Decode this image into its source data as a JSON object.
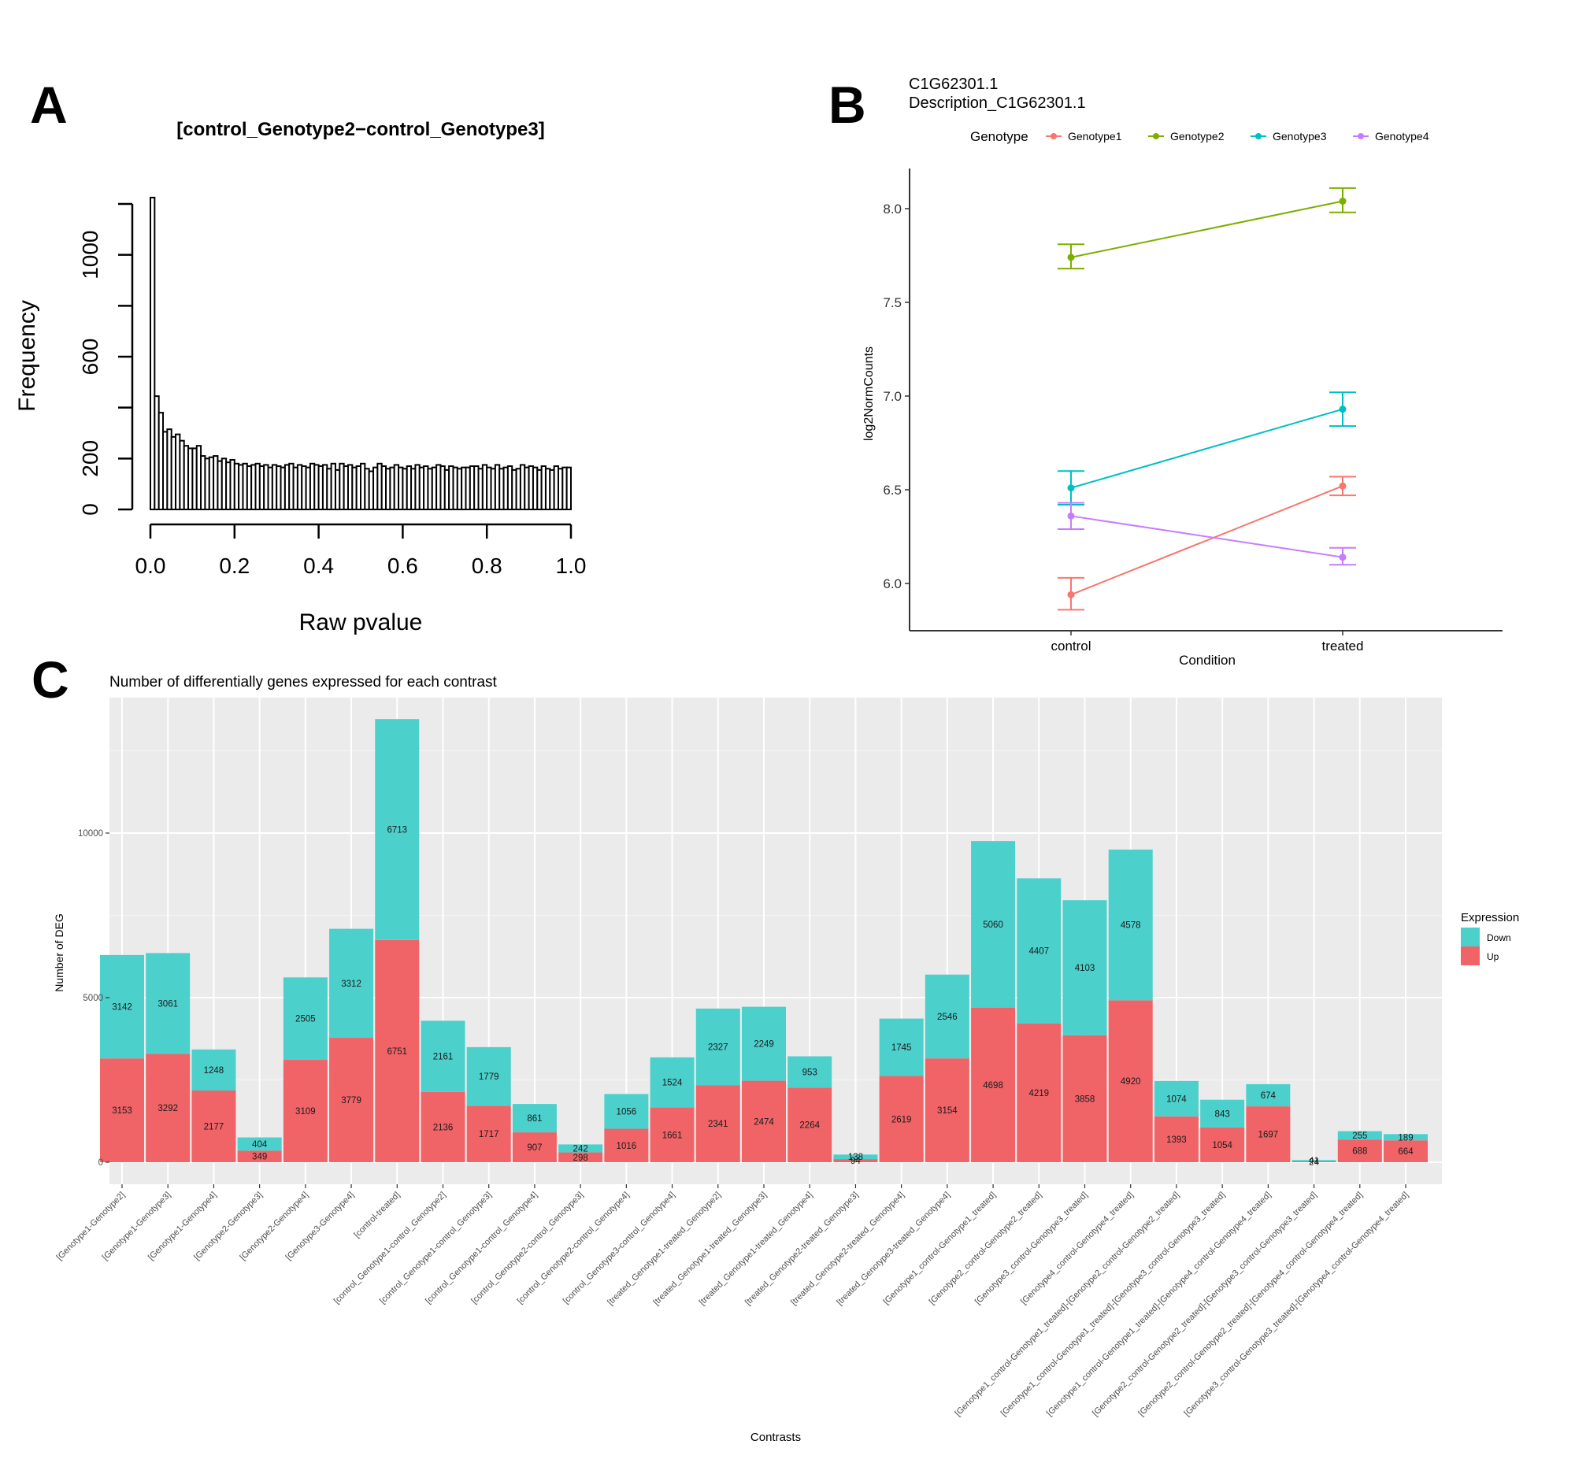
{
  "panels": {
    "A": "A",
    "B": "B",
    "C": "C"
  },
  "chart_data": [
    {
      "panel": "A",
      "type": "bar",
      "subtype": "histogram",
      "title": "[control_Genotype2−control_Genotype3]",
      "xlabel": "Raw pvalue",
      "ylabel": "Frequency",
      "xlim": [
        0,
        1
      ],
      "ylim": [
        0,
        1200
      ],
      "xticks": [
        "0.0",
        "0.2",
        "0.4",
        "0.6",
        "0.8",
        "1.0"
      ],
      "xtick_values": [
        0,
        0.2,
        0.4,
        0.6,
        0.8,
        1.0
      ],
      "yticks": [
        "0",
        "200",
        "600",
        "1000"
      ],
      "ytick_values": [
        0,
        200,
        400,
        600,
        800,
        1000,
        1200
      ],
      "ytick_labels_all": [
        "0",
        "200",
        "",
        "600",
        "",
        "1000",
        ""
      ],
      "bin_width": 0.01,
      "values": [
        1225,
        445,
        380,
        305,
        315,
        285,
        295,
        270,
        250,
        240,
        240,
        250,
        210,
        200,
        205,
        210,
        190,
        200,
        185,
        195,
        180,
        175,
        180,
        170,
        175,
        180,
        170,
        175,
        165,
        175,
        170,
        165,
        175,
        180,
        165,
        175,
        170,
        165,
        180,
        175,
        170,
        175,
        160,
        180,
        155,
        180,
        170,
        175,
        165,
        170,
        180,
        160,
        150,
        165,
        180,
        170,
        160,
        165,
        175,
        165,
        160,
        170,
        160,
        175,
        165,
        170,
        160,
        165,
        175,
        170,
        155,
        170,
        165,
        160,
        165,
        165,
        170,
        170,
        160,
        175,
        165,
        160,
        175,
        160,
        165,
        170,
        155,
        160,
        175,
        165,
        170,
        165,
        155,
        170,
        160,
        155,
        170,
        160,
        165,
        165
      ]
    },
    {
      "panel": "B",
      "type": "line",
      "title": "C1G62301.1",
      "subtitle": "Description_C1G62301.1",
      "xlabel": "Condition",
      "ylabel": "log2NormCounts",
      "categories": [
        "control",
        "treated"
      ],
      "ylim": [
        5.74,
        8.21
      ],
      "yticks": [
        "6.0",
        "6.5",
        "7.0",
        "7.5",
        "8.0"
      ],
      "ytick_values": [
        6.0,
        6.5,
        7.0,
        7.5,
        8.0
      ],
      "legend": {
        "title": "Genotype",
        "position": "top"
      },
      "series": [
        {
          "name": "Genotype1",
          "color": "#F8766D",
          "values": [
            5.94,
            6.52
          ],
          "lower": [
            5.86,
            6.47
          ],
          "upper": [
            6.03,
            6.57
          ]
        },
        {
          "name": "Genotype2",
          "color": "#7CAE00",
          "values": [
            7.74,
            8.04
          ],
          "lower": [
            7.68,
            7.98
          ],
          "upper": [
            7.81,
            8.11
          ]
        },
        {
          "name": "Genotype3",
          "color": "#00BFC4",
          "values": [
            6.51,
            6.93
          ],
          "lower": [
            6.42,
            6.84
          ],
          "upper": [
            6.6,
            7.02
          ]
        },
        {
          "name": "Genotype4",
          "color": "#C77CFF",
          "values": [
            6.36,
            6.14
          ],
          "lower": [
            6.29,
            6.1
          ],
          "upper": [
            6.43,
            6.19
          ]
        }
      ]
    },
    {
      "panel": "C",
      "type": "bar",
      "subtype": "stacked",
      "title": "Number of differentially genes expressed for each contrast",
      "xlabel": "Contrasts",
      "ylabel": "Number of DEG",
      "ylim": [
        -600,
        14000
      ],
      "yticks": [
        "0",
        "5000",
        "10000"
      ],
      "ytick_values": [
        0,
        5000,
        10000
      ],
      "grid": true,
      "legend": {
        "title": "Expression",
        "position": "right"
      },
      "categories": [
        "[Genotype1-Genotype2]",
        "[Genotype1-Genotype3]",
        "[Genotype1-Genotype4]",
        "[Genotype2-Genotype3]",
        "[Genotype2-Genotype4]",
        "[Genotype3-Genotype4]",
        "[control-treated]",
        "[control_Genotype1-control_Genotype2]",
        "[control_Genotype1-control_Genotype3]",
        "[control_Genotype1-control_Genotype4]",
        "[control_Genotype2-control_Genotype3]",
        "[control_Genotype2-control_Genotype4]",
        "[control_Genotype3-control_Genotype4]",
        "[treated_Genotype1-treated_Genotype2]",
        "[treated_Genotype1-treated_Genotype3]",
        "[treated_Genotype1-treated_Genotype4]",
        "[treated_Genotype2-treated_Genotype3]",
        "[treated_Genotype2-treated_Genotype4]",
        "[treated_Genotype3-treated_Genotype4]",
        "[Genotype1_control-Genotype1_treated]",
        "[Genotype2_control-Genotype2_treated]",
        "[Genotype3_control-Genotype3_treated]",
        "[Genotype4_control-Genotype4_treated]",
        "[Genotype1_control-Genotype1_treated]-[Genotype2_control-Genotype2_treated]",
        "[Genotype1_control-Genotype1_treated]-[Genotype3_control-Genotype3_treated]",
        "[Genotype1_control-Genotype1_treated]-[Genotype4_control-Genotype4_treated]",
        "[Genotype2_control-Genotype2_treated]-[Genotype3_control-Genotype3_treated]",
        "[Genotype2_control-Genotype2_treated]-[Genotype4_control-Genotype4_treated]",
        "[Genotype3_control-Genotype3_treated]-[Genotype4_control-Genotype4_treated]"
      ],
      "series": [
        {
          "name": "Up",
          "color": "#F06468",
          "values": [
            3153,
            3292,
            2177,
            349,
            3109,
            3779,
            6751,
            2136,
            1717,
            907,
            298,
            1016,
            1661,
            2341,
            2474,
            2264,
            94,
            2619,
            3154,
            4698,
            4219,
            3858,
            4920,
            1393,
            1054,
            1697,
            24,
            688,
            664
          ]
        },
        {
          "name": "Down",
          "color": "#4BD0CC",
          "values": [
            3142,
            3061,
            1248,
            404,
            2505,
            3312,
            6713,
            2161,
            1779,
            861,
            242,
            1056,
            1524,
            2327,
            2249,
            953,
            138,
            1745,
            2546,
            5060,
            4407,
            4103,
            4578,
            1074,
            843,
            674,
            41,
            255,
            189
          ]
        }
      ],
      "legend_entries": [
        "Down",
        "Up"
      ]
    }
  ]
}
